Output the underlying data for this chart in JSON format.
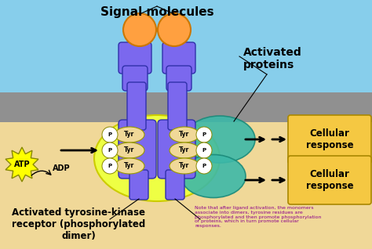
{
  "bg_sky_color": "#87CEEB",
  "bg_membrane_color": "#909090",
  "bg_cell_color": "#F0D898",
  "signal_molecules_label": "Signal molecules",
  "activated_proteins_label": "Activated\nproteins",
  "atp_label": "ATP",
  "adp_label": "ADP",
  "activated_label": "Activated tyrosine-kinase\nreceptor (phosphorylated\ndimer)",
  "cellular_response_label": "Cellular\nresponse",
  "note_text": "Note that after ligand activation, the monomers\nassociate into dimers, tyrosine residues are\nphosphorylated and then promote phosphorylation\nof proteins, which in turn promote cellular\nresponses.",
  "receptor_color": "#7B68EE",
  "ligand_color": "#FFA040",
  "tyr_oval_color": "#F0D898",
  "activated_protein_color": "#3CB8A8",
  "cellular_box_color": "#F5C842",
  "atp_color": "#FFFF00",
  "yellow_glow_color": "#EEFF44"
}
